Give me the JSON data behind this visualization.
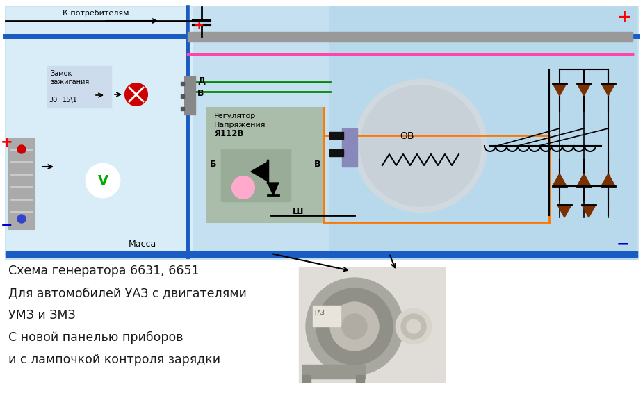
{
  "bg_color": "#ffffff",
  "diagram_bg": "#c5e0f0",
  "left_panel_bg": "#d8edf8",
  "title_lines": [
    "Схема генератора 6631, 6651",
    "Для автомобилей УАЗ с двигателями",
    "УМЗ и ЗМЗ",
    "С новой панелью приборов",
    "и с лампочкой контроля зарядки"
  ],
  "text_color": "#1a1a1a",
  "red_color": "#ff0000",
  "blue_color": "#0000cc",
  "wire_blue": "#1a5bc4",
  "wire_green": "#008800",
  "wire_pink": "#ff44aa",
  "wire_orange": "#ff7700",
  "wire_black": "#000000",
  "wire_gray": "#888888",
  "diode_color": "#7b3000"
}
